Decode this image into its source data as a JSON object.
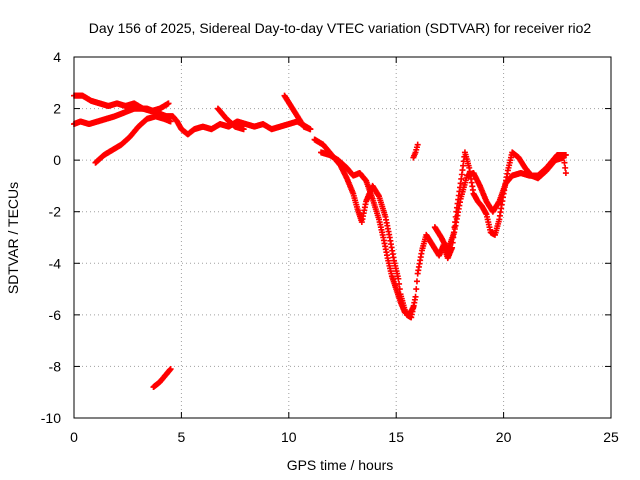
{
  "chart_data": {
    "type": "scatter",
    "title": "Day 156 of 2025, Sidereal Day-to-day VTEC variation (SDTVAR) for receiver rio2",
    "xlabel": "GPS time / hours",
    "ylabel": "SDTVAR / TECUs",
    "xlim": [
      0,
      25
    ],
    "ylim": [
      -10,
      4
    ],
    "xticks": [
      0,
      5,
      10,
      15,
      20,
      25
    ],
    "yticks": [
      -10,
      -8,
      -6,
      -4,
      -2,
      0,
      2,
      4
    ],
    "grid": true,
    "legend": "none",
    "marker": "+",
    "series_color": "#ff0000",
    "series": [
      {
        "segments": [
          [
            [
              0.0,
              1.4
            ],
            [
              0.3,
              1.5
            ],
            [
              0.7,
              1.4
            ],
            [
              1.1,
              1.5
            ],
            [
              1.5,
              1.6
            ],
            [
              1.9,
              1.7
            ],
            [
              2.2,
              1.8
            ],
            [
              2.5,
              1.9
            ],
            [
              2.8,
              2.0
            ],
            [
              3.1,
              2.0
            ],
            [
              3.4,
              2.0
            ],
            [
              3.7,
              1.9
            ],
            [
              4.0,
              1.8
            ],
            [
              4.3,
              1.7
            ],
            [
              4.6,
              1.7
            ],
            [
              4.8,
              1.5
            ],
            [
              5.0,
              1.2
            ],
            [
              5.3,
              1.0
            ],
            [
              5.6,
              1.2
            ],
            [
              6.0,
              1.3
            ],
            [
              6.4,
              1.2
            ],
            [
              6.8,
              1.4
            ],
            [
              7.2,
              1.3
            ],
            [
              7.6,
              1.5
            ],
            [
              8.0,
              1.4
            ],
            [
              8.4,
              1.3
            ],
            [
              8.8,
              1.4
            ],
            [
              9.2,
              1.2
            ],
            [
              9.6,
              1.3
            ],
            [
              10.0,
              1.4
            ],
            [
              10.4,
              1.5
            ],
            [
              10.8,
              1.3
            ],
            [
              11.0,
              1.2
            ]
          ],
          [
            [
              0.0,
              2.5
            ],
            [
              0.4,
              2.5
            ],
            [
              0.8,
              2.3
            ],
            [
              1.2,
              2.2
            ],
            [
              1.6,
              2.1
            ],
            [
              2.0,
              2.2
            ],
            [
              2.4,
              2.1
            ],
            [
              2.8,
              2.2
            ],
            [
              3.2,
              2.0
            ],
            [
              3.6,
              1.9
            ],
            [
              4.0,
              2.0
            ],
            [
              4.4,
              2.2
            ]
          ],
          [
            [
              1.0,
              -0.1
            ],
            [
              1.4,
              0.2
            ],
            [
              1.8,
              0.4
            ],
            [
              2.2,
              0.6
            ],
            [
              2.6,
              0.9
            ],
            [
              3.0,
              1.3
            ],
            [
              3.4,
              1.6
            ],
            [
              3.8,
              1.7
            ],
            [
              4.2,
              1.6
            ],
            [
              4.5,
              1.5
            ]
          ],
          [
            [
              6.7,
              2.0
            ],
            [
              7.1,
              1.6
            ],
            [
              7.5,
              1.3
            ],
            [
              7.9,
              1.2
            ]
          ],
          [
            [
              9.8,
              2.5
            ],
            [
              10.1,
              2.1
            ],
            [
              10.4,
              1.7
            ],
            [
              10.7,
              1.3
            ],
            [
              11.0,
              1.2
            ]
          ],
          [
            [
              11.2,
              0.8
            ],
            [
              11.6,
              0.6
            ],
            [
              12.0,
              0.2
            ],
            [
              12.4,
              -0.2
            ],
            [
              12.7,
              -0.7
            ],
            [
              13.0,
              -1.3
            ],
            [
              13.2,
              -1.9
            ],
            [
              13.4,
              -2.4
            ],
            [
              13.6,
              -1.6
            ],
            [
              13.9,
              -1.0
            ],
            [
              14.2,
              -1.4
            ],
            [
              14.5,
              -2.2
            ],
            [
              14.7,
              -3.0
            ],
            [
              14.9,
              -3.9
            ],
            [
              15.1,
              -4.6
            ],
            [
              15.2,
              -5.2
            ],
            [
              15.4,
              -5.8
            ],
            [
              15.5,
              -6.0
            ],
            [
              15.7,
              -6.1
            ],
            [
              15.9,
              -5.3
            ],
            [
              16.0,
              -4.4
            ],
            [
              16.2,
              -3.5
            ],
            [
              16.4,
              -2.9
            ],
            [
              16.7,
              -3.3
            ],
            [
              17.0,
              -3.7
            ],
            [
              17.2,
              -3.3
            ],
            [
              17.4,
              -3.8
            ],
            [
              17.6,
              -3.4
            ],
            [
              17.8,
              -2.0
            ],
            [
              18.0,
              -0.9
            ],
            [
              18.2,
              0.3
            ],
            [
              18.4,
              -0.3
            ],
            [
              18.6,
              -1.3
            ],
            [
              18.8,
              -1.6
            ],
            [
              19.0,
              -1.8
            ],
            [
              19.2,
              -2.1
            ],
            [
              19.4,
              -2.8
            ],
            [
              19.6,
              -2.9
            ],
            [
              19.8,
              -2.3
            ],
            [
              20.0,
              -1.3
            ],
            [
              20.2,
              -0.4
            ],
            [
              20.4,
              0.3
            ],
            [
              20.7,
              0.1
            ],
            [
              21.0,
              -0.3
            ],
            [
              21.3,
              -0.6
            ],
            [
              21.6,
              -0.7
            ],
            [
              22.0,
              -0.4
            ],
            [
              22.4,
              0.0
            ],
            [
              22.8,
              0.1
            ],
            [
              22.9,
              -0.5
            ]
          ],
          [
            [
              11.5,
              0.3
            ],
            [
              11.9,
              0.2
            ],
            [
              12.3,
              0.0
            ],
            [
              12.7,
              -0.3
            ],
            [
              13.0,
              -0.6
            ],
            [
              13.3,
              -0.5
            ],
            [
              13.6,
              -0.8
            ],
            [
              13.9,
              -1.5
            ],
            [
              14.2,
              -2.3
            ],
            [
              14.4,
              -3.0
            ],
            [
              14.6,
              -3.8
            ],
            [
              14.8,
              -4.5
            ],
            [
              15.0,
              -5.0
            ],
            [
              15.2,
              -5.5
            ],
            [
              15.4,
              -5.9
            ],
            [
              15.6,
              -6.0
            ],
            [
              15.8,
              -5.7
            ]
          ],
          [
            [
              15.8,
              0.1
            ],
            [
              15.9,
              0.3
            ],
            [
              16.0,
              0.6
            ]
          ],
          [
            [
              16.8,
              -2.6
            ],
            [
              17.1,
              -3.0
            ],
            [
              17.4,
              -3.5
            ],
            [
              17.7,
              -2.8
            ],
            [
              18.0,
              -1.5
            ],
            [
              18.3,
              -0.6
            ],
            [
              18.6,
              -0.5
            ],
            [
              18.9,
              -1.0
            ],
            [
              19.2,
              -1.6
            ],
            [
              19.5,
              -2.0
            ],
            [
              19.8,
              -1.6
            ],
            [
              20.1,
              -0.9
            ],
            [
              20.4,
              -0.6
            ],
            [
              20.8,
              -0.5
            ],
            [
              21.2,
              -0.6
            ],
            [
              21.6,
              -0.6
            ],
            [
              22.0,
              -0.3
            ],
            [
              22.5,
              0.2
            ],
            [
              22.9,
              0.2
            ]
          ],
          [
            [
              3.7,
              -8.8
            ],
            [
              4.0,
              -8.6
            ],
            [
              4.3,
              -8.3
            ],
            [
              4.5,
              -8.1
            ]
          ]
        ]
      }
    ]
  }
}
